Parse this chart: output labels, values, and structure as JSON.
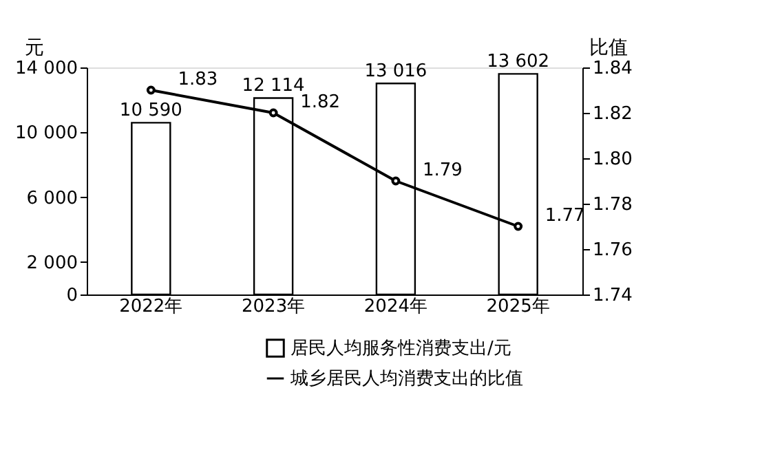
{
  "chart_data": {
    "type": "bar",
    "categories": [
      "2022年",
      "2023年",
      "2024年",
      "2025年"
    ],
    "ylabel": "元",
    "y2label": "比值",
    "series": [
      {
        "name": "居民人均服务性消费支出/元",
        "color": "#ffffff",
        "values": [
          10590,
          12114,
          13016,
          13602
        ],
        "value_labels": [
          "10 590",
          "12 114",
          "13 016",
          "13 602"
        ]
      },
      {
        "name": "城乡居民人均消费支出的比值",
        "type": "line",
        "axis": "y2",
        "color": "#000000",
        "values": [
          1.83,
          1.82,
          1.79,
          1.77
        ]
      }
    ],
    "ylim": [
      0,
      14000
    ],
    "yticks": [
      0,
      {
        "value": 2000,
        "label": "2 000"
      },
      {
        "value": 6000,
        "label": "6 000"
      },
      {
        "value": 10000,
        "label": "10 000"
      },
      {
        "value": 14000,
        "label": "14 000"
      }
    ],
    "y2lim": [
      1.74,
      1.84
    ],
    "y2ticks": [
      1.74,
      1.76,
      1.78,
      {
        "value": 1.8,
        "label": "1.80"
      },
      1.82,
      1.84
    ],
    "data_labels": true,
    "marker": "circle",
    "grid": false,
    "legend": "bottom"
  }
}
